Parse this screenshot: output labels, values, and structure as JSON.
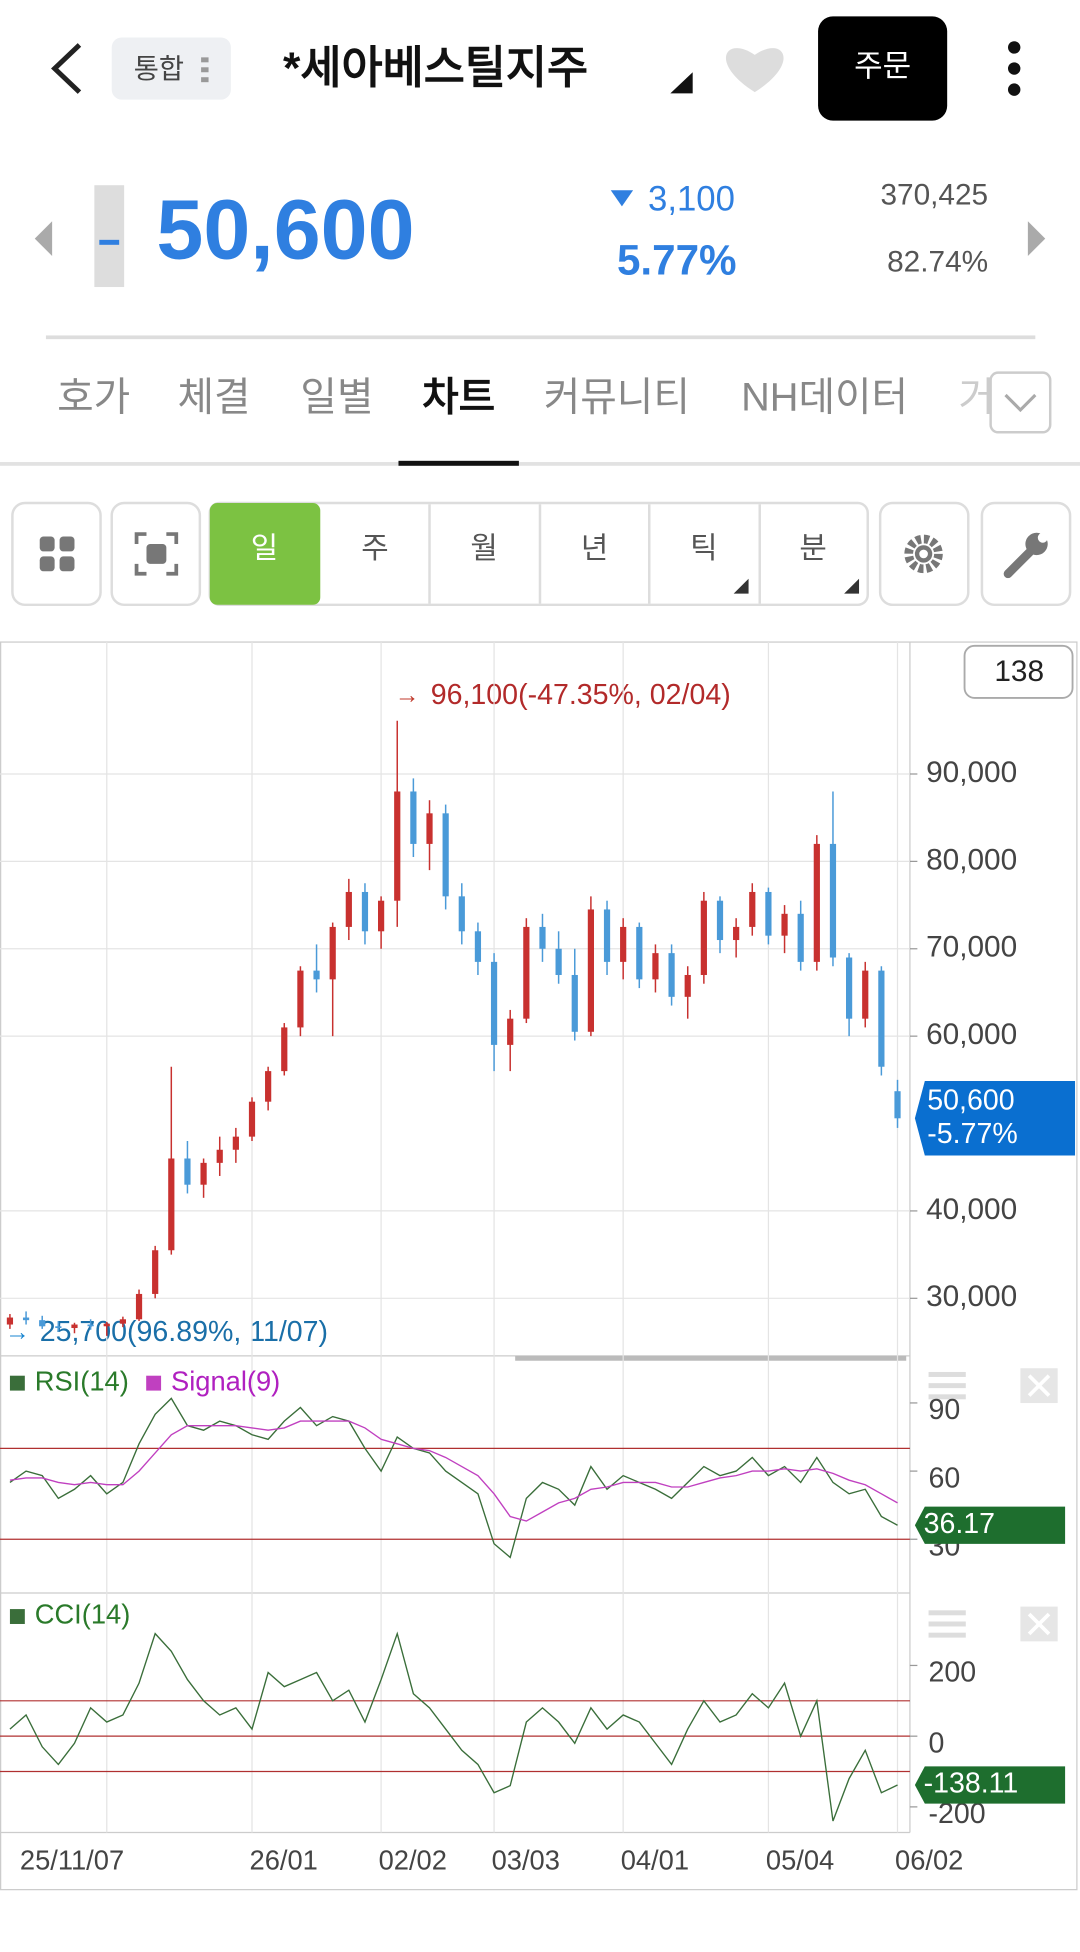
{
  "header": {
    "tag": "통합",
    "title": "*세아베스틸지주",
    "order_button": "주문"
  },
  "quote": {
    "price": "50,600",
    "change": "3,100",
    "change_rate": "5.77%",
    "volume": "370,425",
    "volume_ratio": "82.74%"
  },
  "tabs": [
    "호가",
    "체결",
    "일별",
    "차트",
    "커뮤니티",
    "NH데이터",
    "거"
  ],
  "period_buttons": [
    "일",
    "주",
    "월",
    "년",
    "틱",
    "분"
  ],
  "chart_data": [
    {
      "type": "candlestick",
      "up_color": "#c8312f",
      "down_color": "#4a9ad8",
      "grid": true,
      "categories": [
        null,
        null,
        null,
        null,
        null,
        null,
        "25/11/07",
        null,
        null,
        null,
        null,
        null,
        null,
        null,
        null,
        "26/01",
        null,
        null,
        null,
        null,
        null,
        null,
        null,
        "02/02",
        null,
        null,
        null,
        null,
        null,
        null,
        "03/03",
        null,
        null,
        null,
        null,
        null,
        null,
        null,
        "04/01",
        null,
        null,
        null,
        null,
        null,
        null,
        null,
        null,
        "05/04",
        null,
        null,
        null,
        null,
        null,
        null,
        null,
        "06/02"
      ],
      "ohlc": [
        [
          27000,
          28200,
          26500,
          27800
        ],
        [
          27800,
          28500,
          27000,
          27500
        ],
        [
          27500,
          28000,
          26500,
          26800
        ],
        [
          26800,
          27400,
          26200,
          26600
        ],
        [
          26600,
          27200,
          26000,
          27000
        ],
        [
          27000,
          27600,
          26400,
          26800
        ],
        [
          26800,
          27300,
          25700,
          27100
        ],
        [
          27100,
          27900,
          26700,
          27600
        ],
        [
          27600,
          31000,
          27400,
          30500
        ],
        [
          30500,
          36000,
          30000,
          35500
        ],
        [
          35500,
          56500,
          35000,
          46000
        ],
        [
          46000,
          48000,
          42000,
          43000
        ],
        [
          43000,
          46000,
          41500,
          45500
        ],
        [
          45500,
          48500,
          44000,
          47000
        ],
        [
          47000,
          49500,
          45500,
          48500
        ],
        [
          48500,
          53000,
          48000,
          52500
        ],
        [
          52500,
          56500,
          51500,
          56000
        ],
        [
          56000,
          61500,
          55500,
          61000
        ],
        [
          61000,
          68000,
          60000,
          67500
        ],
        [
          67500,
          70500,
          65000,
          66500
        ],
        [
          66500,
          73000,
          60000,
          72500
        ],
        [
          72500,
          78000,
          71000,
          76500
        ],
        [
          76500,
          77500,
          70500,
          72000
        ],
        [
          72000,
          76000,
          70000,
          75500
        ],
        [
          75500,
          96100,
          72500,
          88000
        ],
        [
          88000,
          89500,
          80500,
          82000
        ],
        [
          82000,
          87000,
          79000,
          85500
        ],
        [
          85500,
          86500,
          74500,
          76000
        ],
        [
          76000,
          77500,
          70500,
          72000
        ],
        [
          72000,
          73000,
          67000,
          68500
        ],
        [
          68500,
          69500,
          56000,
          59000
        ],
        [
          59000,
          63000,
          56000,
          62000
        ],
        [
          62000,
          73500,
          61500,
          72500
        ],
        [
          72500,
          74000,
          68500,
          70000
        ],
        [
          70000,
          72000,
          66000,
          67000
        ],
        [
          67000,
          70000,
          59500,
          60500
        ],
        [
          60500,
          76000,
          60000,
          74500
        ],
        [
          74500,
          75500,
          67000,
          68500
        ],
        [
          68500,
          73500,
          66500,
          72500
        ],
        [
          72500,
          73000,
          65500,
          66500
        ],
        [
          66500,
          70500,
          65000,
          69500
        ],
        [
          69500,
          70500,
          63500,
          64500
        ],
        [
          64500,
          68000,
          62000,
          67000
        ],
        [
          67000,
          76500,
          66000,
          75500
        ],
        [
          75500,
          76000,
          69500,
          71000
        ],
        [
          71000,
          73500,
          69000,
          72500
        ],
        [
          72500,
          77500,
          71500,
          76500
        ],
        [
          76500,
          77000,
          70500,
          71500
        ],
        [
          71500,
          75000,
          69500,
          74000
        ],
        [
          74000,
          75500,
          67500,
          68500
        ],
        [
          68500,
          83000,
          67500,
          82000
        ],
        [
          82000,
          88000,
          68000,
          69000
        ],
        [
          69000,
          69500,
          60000,
          62000
        ],
        [
          62000,
          68500,
          61000,
          67500
        ],
        [
          67500,
          68000,
          55500,
          56500
        ],
        [
          53700,
          55000,
          49500,
          50600
        ]
      ],
      "ylim": [
        23700,
        105100
      ],
      "yticks": [
        {
          "value": 30000,
          "label": "30,000"
        },
        {
          "value": 40000,
          "label": "40,000"
        },
        {
          "value": 60000,
          "label": "60,000"
        },
        {
          "value": 70000,
          "label": "70,000"
        },
        {
          "value": 80000,
          "label": "80,000"
        },
        {
          "value": 90000,
          "label": "90,000"
        }
      ],
      "annotations": {
        "high": "96,100(-47.35%, 02/04)",
        "low": "25,700(96.89%, 11/07)"
      },
      "visible_count": "138",
      "last_label": {
        "value": 50600,
        "label": "50,600",
        "change": "-5.77%"
      }
    },
    {
      "type": "line",
      "levels": [
        30,
        70
      ],
      "ylim": [
        8,
        108
      ],
      "yticks": [
        30,
        60,
        90
      ],
      "series": [
        {
          "name": "RSI(14)",
          "color": "#3a6e3a",
          "values": [
            55,
            60,
            58,
            48,
            52,
            58,
            50,
            55,
            72,
            85,
            92,
            80,
            78,
            82,
            80,
            76,
            74,
            82,
            88,
            80,
            84,
            82,
            70,
            60,
            75,
            70,
            68,
            60,
            55,
            50,
            28,
            22,
            48,
            55,
            52,
            45,
            62,
            52,
            58,
            55,
            52,
            48,
            55,
            62,
            58,
            60,
            66,
            58,
            62,
            55,
            66,
            55,
            50,
            52,
            40,
            36.17
          ]
        },
        {
          "name": "Signal(9)",
          "color": "#c040c0",
          "values": [
            56,
            57,
            57,
            55,
            54,
            55,
            54,
            54,
            60,
            68,
            76,
            80,
            80,
            80,
            80,
            79,
            78,
            79,
            82,
            82,
            82,
            82,
            79,
            74,
            72,
            70,
            69,
            66,
            62,
            58,
            50,
            40,
            38,
            42,
            46,
            48,
            52,
            53,
            55,
            55,
            55,
            53,
            53,
            55,
            57,
            58,
            60,
            60,
            61,
            60,
            61,
            59,
            56,
            54,
            50,
            46
          ]
        }
      ]
    },
    {
      "type": "line",
      "levels": [
        -100,
        0,
        100
      ],
      "ylim": [
        -269,
        398
      ],
      "yticks": [
        -200,
        0,
        200
      ],
      "series": [
        {
          "name": "CCI(14)",
          "color": "#3a6e3a",
          "values": [
            20,
            60,
            -30,
            -80,
            -20,
            80,
            40,
            60,
            150,
            290,
            240,
            160,
            100,
            60,
            80,
            20,
            180,
            140,
            160,
            180,
            100,
            130,
            40,
            160,
            290,
            120,
            80,
            20,
            -40,
            -80,
            -160,
            -140,
            40,
            80,
            40,
            -20,
            80,
            20,
            60,
            40,
            -20,
            -80,
            20,
            100,
            40,
            60,
            120,
            80,
            150,
            0,
            100,
            -240,
            -120,
            -40,
            -160,
            -138.11
          ]
        }
      ]
    }
  ]
}
